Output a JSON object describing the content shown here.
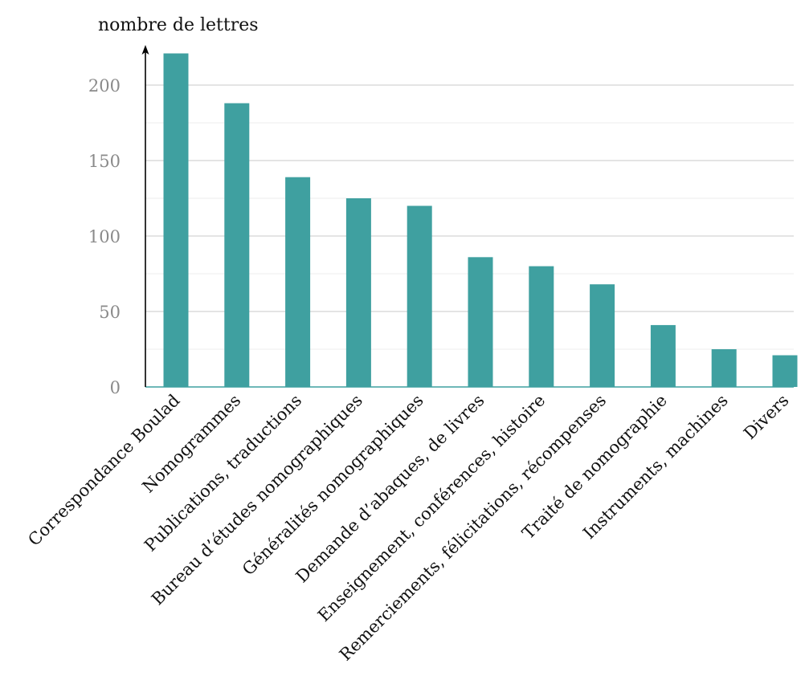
{
  "chart_data": {
    "type": "bar",
    "ylabel": "nombre de lettres",
    "xlabel": "",
    "ylim": [
      0,
      222
    ],
    "yticks": [
      0,
      50,
      100,
      150,
      200
    ],
    "minor_gridlines": [
      25,
      75,
      125,
      175
    ],
    "grid": true,
    "bar_color": "#3fa0a0",
    "categories": [
      "Correspondance Boulad",
      "Nomogrammes",
      "Publications, traductions",
      "Bureau d’études nomographiques",
      "Généralités nomographiques",
      "Demande d’abaques, de livres",
      "Enseignement, conférences, histoire",
      "Remerciements, félicitations, récompenses",
      "Traité de nomographie",
      "Instruments, machines",
      "Divers"
    ],
    "values": [
      221,
      188,
      139,
      125,
      120,
      86,
      80,
      68,
      41,
      25,
      21
    ]
  }
}
